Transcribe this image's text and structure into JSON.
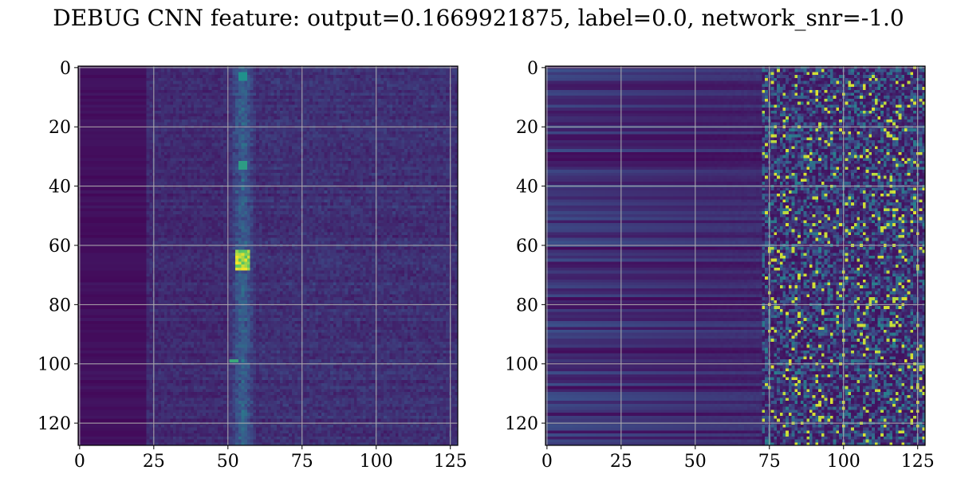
{
  "title": "DEBUG CNN feature: output=0.1669921875, label=0.0, network_snr=-1.0",
  "colormap": [
    "#440154",
    "#3b528b",
    "#21918c",
    "#5ec962",
    "#fde725"
  ],
  "chart_data": [
    {
      "type": "heatmap",
      "title": "",
      "xlabel": "",
      "ylabel": "",
      "xlim": [
        -0.5,
        127.5
      ],
      "ylim": [
        127.5,
        -0.5
      ],
      "xticks": [
        0,
        25,
        50,
        75,
        100,
        125
      ],
      "yticks": [
        0,
        20,
        40,
        60,
        80,
        100,
        120
      ],
      "grid": true,
      "description_of_values": "128x128 feature map; mostly dark purple, with a bright vertical band near columns 52-57 (peaks near rows 33, 63-68, 99)"
    },
    {
      "type": "heatmap",
      "title": "",
      "xlabel": "",
      "ylabel": "",
      "xlim": [
        -0.5,
        127.5
      ],
      "ylim": [
        127.5,
        -0.5
      ],
      "xticks": [
        0,
        25,
        50,
        75,
        100,
        125
      ],
      "yticks": [
        0,
        20,
        40,
        60,
        80,
        100,
        120
      ],
      "grid": true,
      "description_of_values": "128x128 feature map; horizontal streaks on the left, increasingly noisy speckle with yellow-green spots for columns beyond ~70"
    }
  ]
}
